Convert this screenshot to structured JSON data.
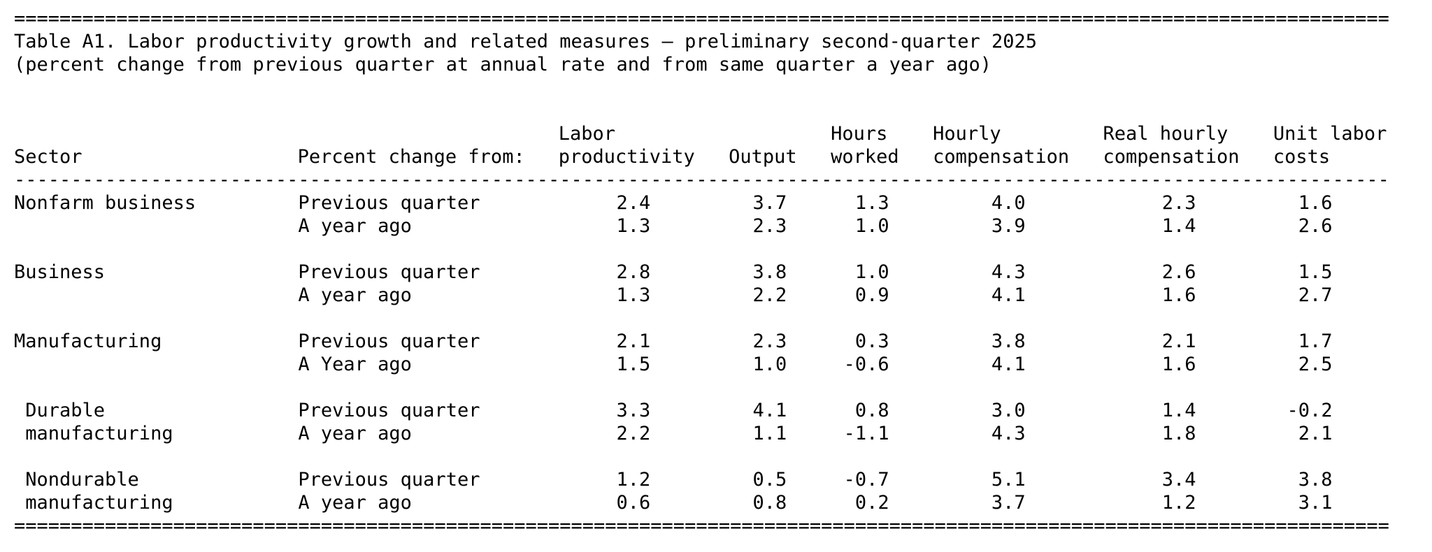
{
  "page": {
    "background": "#ffffff",
    "text_color": "#000000"
  },
  "document": {
    "top_border_char": "=",
    "bottom_border_char": "=",
    "border_count": 121,
    "separator_char": "-",
    "separator_count": 121,
    "title": "Table A1. Labor productivity growth and related measures — preliminary second-quarter 2025",
    "subtitle": "(percent change from previous quarter at annual rate and from same quarter a year ago)"
  },
  "table": {
    "columns": {
      "sector_label": "Sector",
      "change_label": "Percent change from:",
      "measures": [
        {
          "line1": "Labor",
          "line2": "productivity"
        },
        {
          "line1": "",
          "line2": "Output"
        },
        {
          "line1": "Hours",
          "line2": "worked"
        },
        {
          "line1": "Hourly",
          "line2": "compensation"
        },
        {
          "line1": "Real hourly",
          "line2": "compensation"
        },
        {
          "line1": "Unit labor",
          "line2": "costs"
        }
      ]
    },
    "sectors": [
      {
        "name_line1": "Nonfarm business",
        "name_line2": "",
        "rows": [
          {
            "change": "Previous quarter",
            "values": [
              "2.4",
              "3.7",
              "1.3",
              "4.0",
              "2.3",
              "1.6"
            ]
          },
          {
            "change": "A year ago",
            "values": [
              "1.3",
              "2.3",
              "1.0",
              "3.9",
              "1.4",
              "2.6"
            ]
          }
        ]
      },
      {
        "name_line1": "Business",
        "name_line2": "",
        "rows": [
          {
            "change": "Previous quarter",
            "values": [
              "2.8",
              "3.8",
              "1.0",
              "4.3",
              "2.6",
              "1.5"
            ]
          },
          {
            "change": "A year ago",
            "values": [
              "1.3",
              "2.2",
              "0.9",
              "4.1",
              "1.6",
              "2.7"
            ]
          }
        ]
      },
      {
        "name_line1": "Manufacturing",
        "name_line2": "",
        "rows": [
          {
            "change": "Previous quarter",
            "values": [
              "2.1",
              "2.3",
              "0.3",
              "3.8",
              "2.1",
              "1.7"
            ]
          },
          {
            "change": "A Year ago",
            "values": [
              "1.5",
              "1.0",
              "-0.6",
              "4.1",
              "1.6",
              "2.5"
            ]
          }
        ]
      },
      {
        "name_line1": " Durable",
        "name_line2": " manufacturing",
        "rows": [
          {
            "change": "Previous quarter",
            "values": [
              "3.3",
              "4.1",
              "0.8",
              "3.0",
              "1.4",
              "-0.2"
            ]
          },
          {
            "change": "A year ago",
            "values": [
              "2.2",
              "1.1",
              "-1.1",
              "4.3",
              "1.8",
              "2.1"
            ]
          }
        ]
      },
      {
        "name_line1": " Nondurable",
        "name_line2": " manufacturing",
        "rows": [
          {
            "change": "Previous quarter",
            "values": [
              "1.2",
              "0.5",
              "-0.7",
              "5.1",
              "3.4",
              "3.8"
            ]
          },
          {
            "change": "A year ago",
            "values": [
              "0.6",
              "0.8",
              "0.2",
              "3.7",
              "1.2",
              "3.1"
            ]
          }
        ]
      }
    ]
  }
}
